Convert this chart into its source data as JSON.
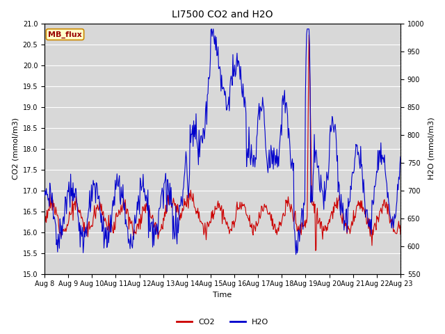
{
  "title": "LI7500 CO2 and H2O",
  "xlabel": "Time",
  "ylabel_left": "CO2 (mmol/m3)",
  "ylabel_right": "H2O (mmol/m3)",
  "co2_ylim": [
    15.0,
    21.0
  ],
  "h2o_ylim": [
    550,
    1000
  ],
  "co2_color": "#cc0000",
  "h2o_color": "#0000cc",
  "background_color": "#ffffff",
  "plot_bg_color": "#d8d8d8",
  "grid_color": "#ffffff",
  "annotation_text": "MB_flux",
  "annotation_bg": "#ffffcc",
  "annotation_border": "#cc8800",
  "annotation_text_color": "#990000",
  "legend_co2": "CO2",
  "legend_h2o": "H2O",
  "title_fontsize": 10,
  "label_fontsize": 8,
  "tick_fontsize": 7,
  "n_points": 600
}
